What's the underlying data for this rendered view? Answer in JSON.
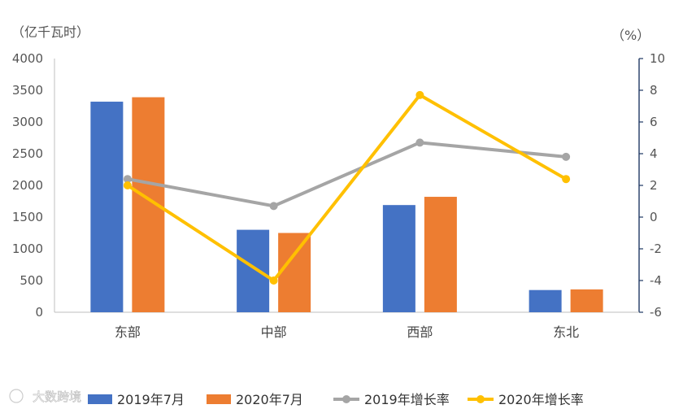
{
  "chart_data": {
    "type": "bar+line",
    "categories": [
      "东部",
      "中部",
      "西部",
      "东北"
    ],
    "left_axis": {
      "unit": "（亿千瓦时）",
      "ylim": [
        0,
        4000
      ],
      "ticks": [
        0,
        500,
        1000,
        1500,
        2000,
        2500,
        3000,
        3500,
        4000
      ]
    },
    "right_axis": {
      "unit": "（%）",
      "ylim": [
        -6,
        10
      ],
      "ticks": [
        -6,
        -4,
        -2,
        0,
        2,
        4,
        6,
        8,
        10
      ]
    },
    "series": [
      {
        "name": "2019年7月",
        "kind": "bar",
        "axis": "left",
        "color": "#4472C4",
        "values": [
          3320,
          1300,
          1690,
          350
        ]
      },
      {
        "name": "2020年7月",
        "kind": "bar",
        "axis": "left",
        "color": "#ED7D31",
        "values": [
          3390,
          1250,
          1820,
          360
        ]
      },
      {
        "name": "2019年增长率",
        "kind": "line",
        "axis": "right",
        "color": "#A5A5A5",
        "values": [
          2.4,
          0.7,
          4.7,
          3.8
        ]
      },
      {
        "name": "2020年增长率",
        "kind": "line",
        "axis": "right",
        "color": "#FFC000",
        "values": [
          2.0,
          -4.0,
          7.7,
          2.4
        ]
      }
    ],
    "legend": "bottom",
    "grid": false
  },
  "watermark": "大数跨境"
}
